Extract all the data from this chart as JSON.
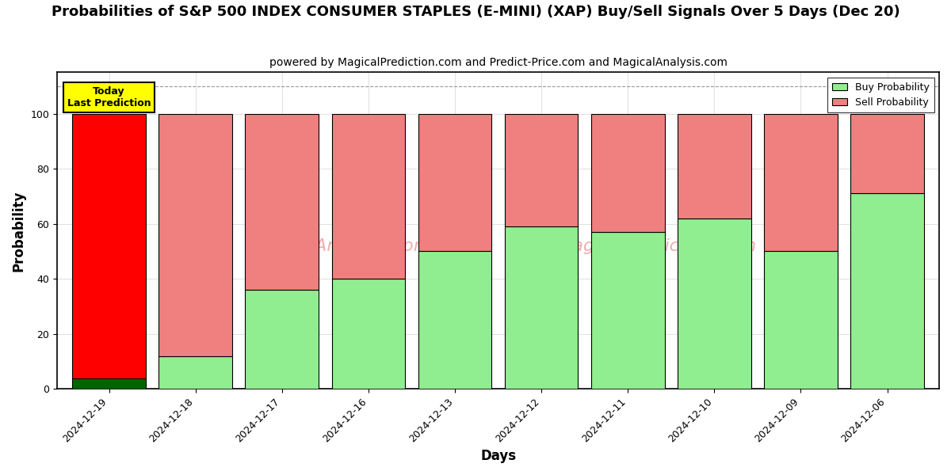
{
  "title": "Probabilities of S&P 500 INDEX CONSUMER STAPLES (E-MINI) (XAP) Buy/Sell Signals Over 5 Days (Dec 20)",
  "subtitle": "powered by MagicalPrediction.com and Predict-Price.com and MagicalAnalysis.com",
  "xlabel": "Days",
  "ylabel": "Probability",
  "categories": [
    "2024-12-19",
    "2024-12-18",
    "2024-12-17",
    "2024-12-16",
    "2024-12-13",
    "2024-12-12",
    "2024-12-11",
    "2024-12-10",
    "2024-12-09",
    "2024-12-06"
  ],
  "buy_values": [
    4,
    12,
    36,
    40,
    50,
    59,
    57,
    62,
    50,
    71
  ],
  "sell_values": [
    96,
    88,
    64,
    60,
    50,
    41,
    43,
    38,
    50,
    29
  ],
  "today_buy_color": "#006400",
  "today_sell_color": "#ff0000",
  "normal_buy_color": "#90EE90",
  "normal_sell_color": "#F08080",
  "today_label_bg": "#ffff00",
  "today_label_text": "Today\nLast Prediction",
  "watermark_color": "#f0a0a0",
  "legend_buy_label": "Buy Probability",
  "legend_sell_label": "Sell Probability",
  "ylim": [
    0,
    115
  ],
  "yticks": [
    0,
    20,
    40,
    60,
    80,
    100
  ],
  "background_color": "#ffffff",
  "title_fontsize": 13,
  "subtitle_fontsize": 10,
  "axis_label_fontsize": 12,
  "tick_fontsize": 9,
  "bar_width": 0.85
}
